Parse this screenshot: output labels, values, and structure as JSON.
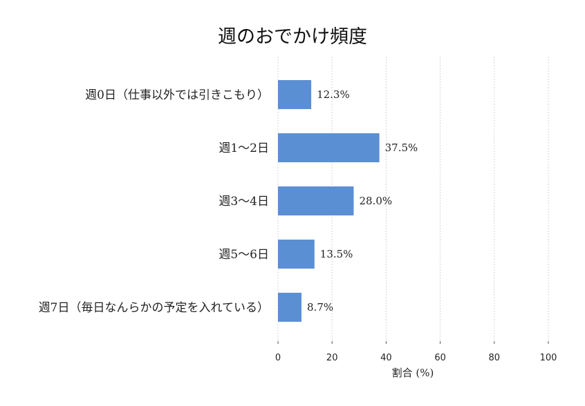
{
  "chart_data": {
    "type": "bar",
    "orientation": "horizontal",
    "title": "週のおでかけ頻度",
    "xlabel": "割合 (%)",
    "ylabel": "",
    "xlim": [
      0,
      100
    ],
    "x_ticks": [
      0,
      20,
      40,
      60,
      80,
      100
    ],
    "grid": "vertical dashed",
    "legend": "none",
    "categories": [
      "週0日（仕事以外では引きこもり）",
      "週1〜2日",
      "週3〜4日",
      "週5〜6日",
      "週7日（毎日なんらかの予定を入れている）"
    ],
    "values": [
      12.3,
      37.5,
      28.0,
      13.5,
      8.7
    ],
    "value_labels": [
      "12.3%",
      "37.5%",
      "28.0%",
      "13.5%",
      "8.7%"
    ],
    "bar_color": "#5b8fd3"
  }
}
